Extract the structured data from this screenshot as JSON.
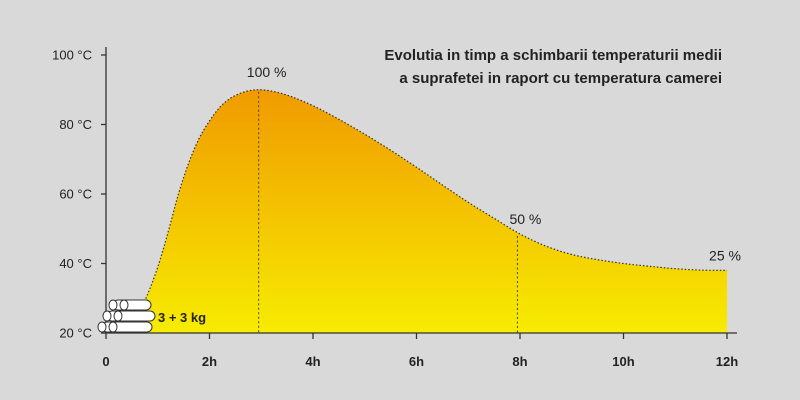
{
  "chart_data": {
    "type": "area",
    "title_lines": [
      "Evolutia in timp a schimbarii temperaturii medii",
      "a suprafetei in raport cu temperatura camerei"
    ],
    "xlabel": "",
    "ylabel": "",
    "x_ticks": [
      0,
      2,
      4,
      6,
      8,
      10,
      12
    ],
    "x_tick_labels": [
      "0",
      "2h",
      "4h",
      "6h",
      "8h",
      "10h",
      "12h"
    ],
    "y_ticks": [
      20,
      40,
      60,
      80,
      100
    ],
    "y_tick_labels": [
      "20 °C",
      "40 °C",
      "60 °C",
      "80 °C",
      "100 °C"
    ],
    "xlim": [
      0,
      12
    ],
    "ylim": [
      20,
      100
    ],
    "grid": false,
    "series": [
      {
        "x": [
          0.45,
          0.6,
          0.8,
          1.0,
          1.2,
          1.4,
          1.6,
          1.8,
          2.0,
          2.2,
          2.4,
          2.6,
          2.8,
          3.0,
          3.3,
          3.6,
          4.0,
          4.5,
          5.0,
          5.5,
          6.0,
          6.5,
          7.0,
          7.5,
          8.0,
          8.5,
          9.0,
          9.5,
          10.0,
          10.5,
          11.0,
          11.5,
          12.0
        ],
        "y": [
          21,
          25,
          31,
          39,
          49,
          60,
          69,
          76,
          81,
          85,
          87.5,
          89,
          89.8,
          90,
          89.3,
          87.9,
          85.4,
          81.5,
          77.2,
          72.6,
          67.7,
          62.6,
          57.6,
          53,
          48.5,
          45,
          42.6,
          41.1,
          40,
          39.2,
          38.5,
          38.1,
          38
        ]
      }
    ],
    "colors": {
      "fill_top": "#f09a00",
      "fill_bottom": "#f7ec00",
      "outline": "#333333",
      "background": "#d9d9d9"
    },
    "annotations": [
      {
        "x": 2.95,
        "y": 90,
        "label": "100 %",
        "dashed_line": true
      },
      {
        "x": 7.95,
        "y": 48.5,
        "label": "50 %",
        "dashed_line": true
      },
      {
        "x": 12.0,
        "y": 38,
        "label": "25 %",
        "dashed_line": false
      }
    ],
    "load_label": "3 + 3 kg",
    "load_icon": "log-stack-icon"
  }
}
